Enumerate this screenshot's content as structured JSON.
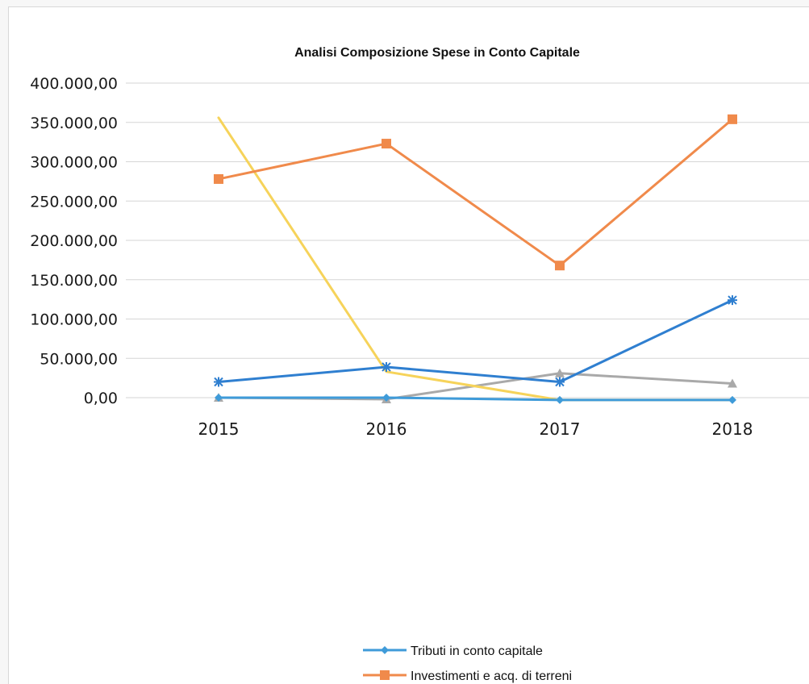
{
  "chart_data": {
    "type": "line",
    "title": "Analisi Composizione Spese in Conto Capitale",
    "categories": [
      "2015",
      "2016",
      "2017",
      "2018"
    ],
    "ylim": [
      0,
      400000
    ],
    "y_ticks": [
      "0,00",
      "50.000,00",
      "100.000,00",
      "150.000,00",
      "200.000,00",
      "250.000,00",
      "300.000,00",
      "350.000,00",
      "400.000,00"
    ],
    "y_tick_values": [
      0,
      50000,
      100000,
      150000,
      200000,
      250000,
      300000,
      350000,
      400000
    ],
    "grid": true,
    "legend_position": "bottom",
    "series": [
      {
        "name": "Tributi in conto capitale",
        "values": [
          0,
          0,
          -3000,
          -3000
        ],
        "color": "#3f9bd9",
        "marker": "diamond",
        "in_legend": true
      },
      {
        "name": "Investimenti e acq. di terreni",
        "values": [
          278000,
          323000,
          168000,
          354000
        ],
        "color": "#f08a4b",
        "marker": "square",
        "in_legend": true
      },
      {
        "name": "",
        "values": [
          0,
          -2000,
          31000,
          18000
        ],
        "color": "#a9a9a9",
        "marker": "triangle",
        "in_legend": false
      },
      {
        "name": "",
        "values": [
          356000,
          33000,
          -3000,
          -3000
        ],
        "color": "#f6d35a",
        "marker": "none",
        "in_legend": false
      },
      {
        "name": "",
        "values": [
          20000,
          39000,
          20000,
          124000
        ],
        "color": "#2f7fd0",
        "marker": "star",
        "in_legend": false
      }
    ]
  }
}
